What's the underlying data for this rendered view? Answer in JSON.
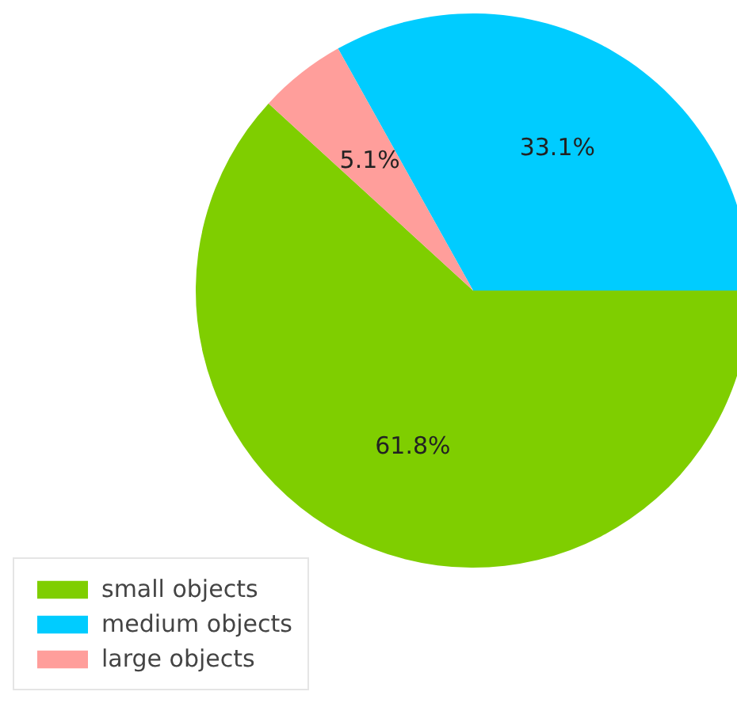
{
  "chart_data": {
    "type": "pie",
    "categories": [
      "small objects",
      "medium objects",
      "large objects"
    ],
    "values": [
      61.8,
      33.1,
      5.1
    ],
    "colors": [
      "#7fce00",
      "#00ccff",
      "#ff9e9b"
    ],
    "value_labels": [
      "61.8%",
      "33.1%",
      "5.1%"
    ],
    "legend": "bottom left"
  }
}
